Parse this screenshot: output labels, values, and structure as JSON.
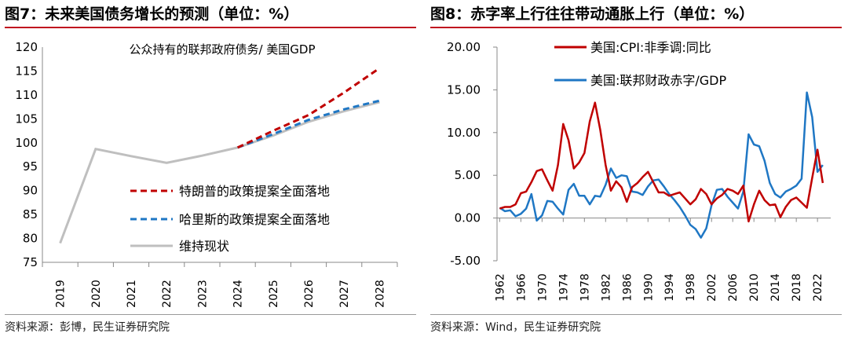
{
  "panels": [
    {
      "figure_title": "图7：未来美国债务增长的预测（单位：%）",
      "source": "资料来源：彭博，民生证券研究院"
    },
    {
      "figure_title": "图8：赤字率上行往往带动通胀上行（单位：%）",
      "source": "资料来源：Wind，民生证券研究院"
    }
  ],
  "chart_data": [
    {
      "type": "line",
      "title": "公众持有的联邦政府债务/ 美国GDP",
      "xlabel": "",
      "ylabel": "",
      "x": [
        "2019",
        "2020",
        "2021",
        "2022",
        "2023",
        "2024",
        "2025",
        "2026",
        "2027",
        "2028"
      ],
      "ylim": [
        75,
        120
      ],
      "yticks": [
        75,
        80,
        85,
        90,
        95,
        100,
        105,
        110,
        115,
        120
      ],
      "legend_position": "lower-right",
      "series": [
        {
          "name": "特朗普的政策提案全面落地",
          "color": "#c00000",
          "style": "dashed",
          "values": [
            null,
            null,
            null,
            null,
            null,
            99.0,
            102.5,
            105.8,
            110.5,
            115.6
          ]
        },
        {
          "name": "哈里斯的政策提案全面落地",
          "color": "#1f77c4",
          "style": "dashed",
          "values": [
            null,
            null,
            null,
            null,
            null,
            99.0,
            101.8,
            104.8,
            107.0,
            108.8
          ]
        },
        {
          "name": "维持现状",
          "color": "#bfbfbf",
          "style": "solid",
          "values": [
            79.0,
            98.7,
            97.2,
            95.8,
            97.3,
            99.0,
            101.5,
            104.4,
            106.6,
            108.5
          ]
        }
      ]
    },
    {
      "type": "line",
      "title": "",
      "xlabel": "",
      "ylabel": "",
      "x": [
        1962,
        1963,
        1964,
        1965,
        1966,
        1967,
        1968,
        1969,
        1970,
        1971,
        1972,
        1973,
        1974,
        1975,
        1976,
        1977,
        1978,
        1979,
        1980,
        1981,
        1982,
        1983,
        1984,
        1985,
        1986,
        1987,
        1988,
        1989,
        1990,
        1991,
        1992,
        1993,
        1994,
        1995,
        1996,
        1997,
        1998,
        1999,
        2000,
        2001,
        2002,
        2003,
        2004,
        2005,
        2006,
        2007,
        2008,
        2009,
        2010,
        2011,
        2012,
        2013,
        2014,
        2015,
        2016,
        2017,
        2018,
        2019,
        2020,
        2021,
        2022,
        2023
      ],
      "xticks": [
        1962,
        1966,
        1970,
        1974,
        1978,
        1982,
        1986,
        1990,
        1994,
        1998,
        2002,
        2006,
        2010,
        2014,
        2018,
        2022
      ],
      "ylim": [
        -5,
        20
      ],
      "yticks": [
        "20.00",
        "15.00",
        "10.00",
        "5.00",
        "0.00",
        "-5.00"
      ],
      "legend_position": "top-left",
      "series": [
        {
          "name": "美国:CPI:非季调:同比",
          "color": "#c00000",
          "values": [
            1.1,
            1.3,
            1.3,
            1.6,
            2.9,
            3.1,
            4.2,
            5.5,
            5.7,
            4.4,
            3.2,
            6.2,
            11.0,
            9.1,
            5.8,
            6.5,
            7.6,
            11.3,
            13.5,
            10.3,
            6.2,
            3.2,
            4.3,
            3.6,
            1.9,
            3.6,
            4.1,
            4.8,
            5.4,
            4.2,
            3.0,
            3.0,
            2.6,
            2.8,
            3.0,
            2.3,
            1.6,
            2.2,
            3.4,
            2.8,
            1.6,
            2.3,
            2.7,
            3.4,
            3.2,
            2.8,
            3.8,
            -0.4,
            1.6,
            3.2,
            2.1,
            1.5,
            1.6,
            0.1,
            1.3,
            2.1,
            2.4,
            1.8,
            1.2,
            4.7,
            8.0,
            4.1
          ]
        },
        {
          "name": "美国:联邦财政赤字/GDP",
          "color": "#1f77c4",
          "values": [
            1.2,
            0.8,
            0.9,
            0.2,
            0.5,
            1.1,
            2.8,
            -0.3,
            0.3,
            2.0,
            1.9,
            1.1,
            0.4,
            3.3,
            4.0,
            2.6,
            2.6,
            1.6,
            2.6,
            2.5,
            3.9,
            5.8,
            4.7,
            5.0,
            4.9,
            3.1,
            3.0,
            2.7,
            3.7,
            4.4,
            4.5,
            3.7,
            2.8,
            2.1,
            1.3,
            0.3,
            -0.8,
            -1.3,
            -2.3,
            -1.2,
            1.5,
            3.3,
            3.4,
            2.5,
            1.8,
            1.1,
            3.1,
            9.8,
            8.6,
            8.4,
            6.7,
            4.1,
            2.8,
            2.4,
            3.1,
            3.4,
            3.8,
            4.6,
            14.7,
            11.8,
            5.4,
            6.2
          ]
        }
      ]
    }
  ]
}
